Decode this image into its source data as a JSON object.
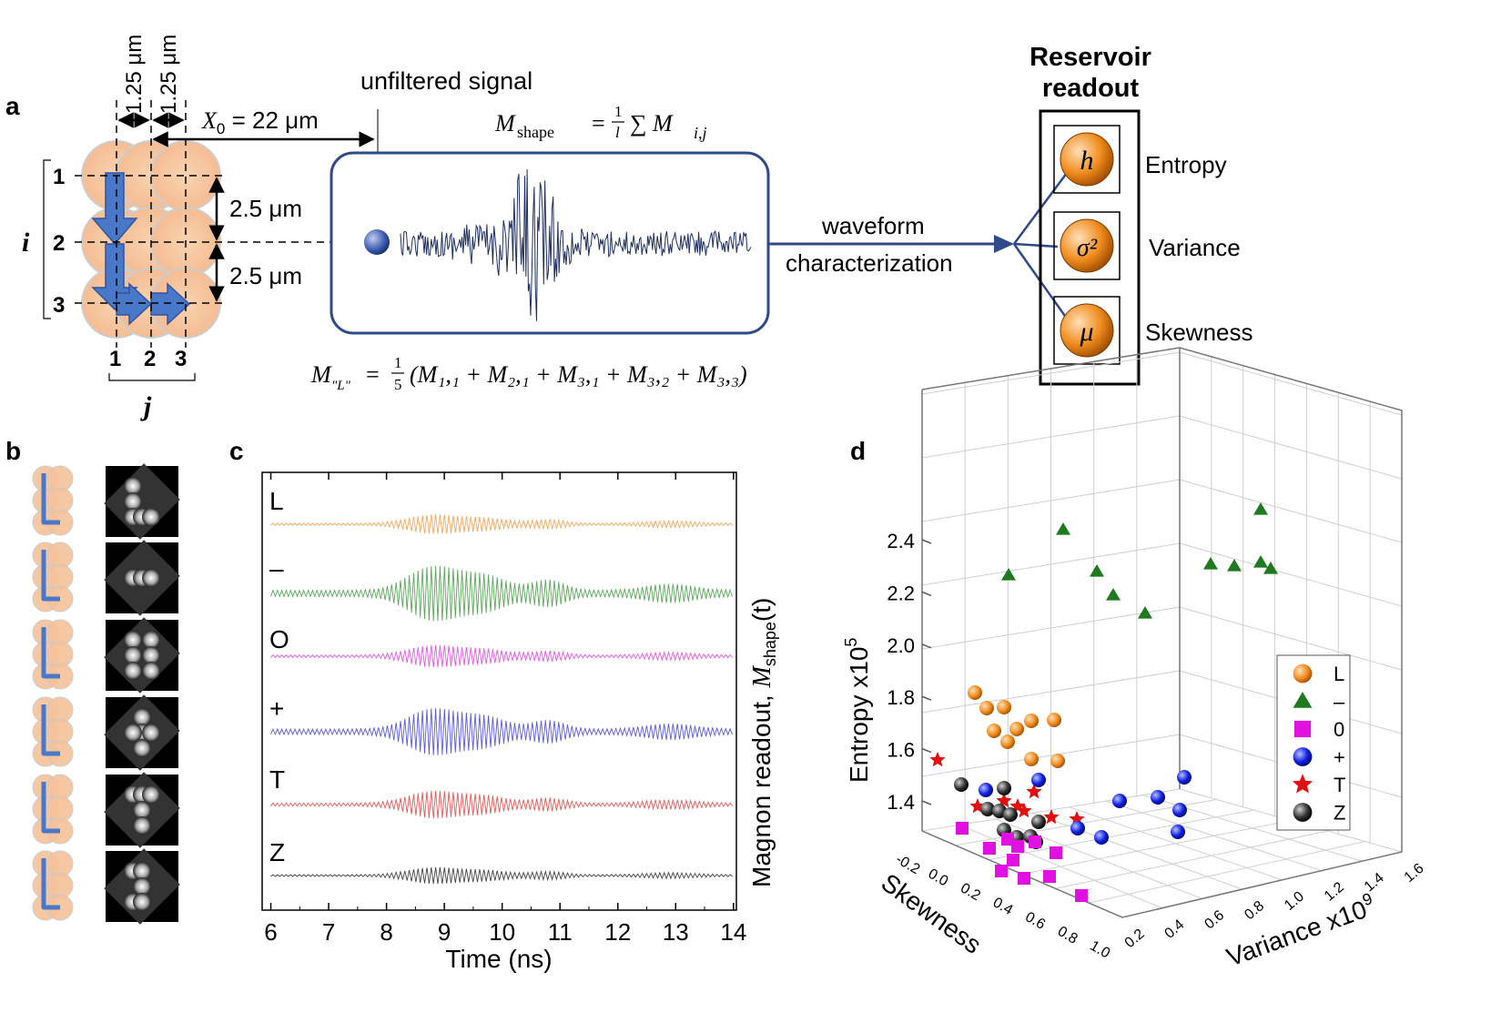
{
  "panel_labels": {
    "a": "a",
    "b": "b",
    "c": "c",
    "d": "d"
  },
  "panel_a": {
    "dim_top_1": "1.25 μm",
    "dim_top_2": "1.25 μm",
    "x0_label": "X",
    "x0_sub": "0",
    "x0_value": " =  22 μm",
    "dim_right_1": "2.5 μm",
    "dim_right_2": "2.5 μm",
    "row_labels": [
      "1",
      "2",
      "3"
    ],
    "col_labels": [
      "1",
      "2",
      "3"
    ],
    "i_label": "i",
    "j_label": "j",
    "unfiltered": "unfiltered signal",
    "m_shape_lhs": "M",
    "m_shape_sub": "shape",
    "m_shape_rhs": "= ",
    "m_shape_frac_num": "1",
    "m_shape_frac_den": "l",
    "m_shape_sum": "∑ M",
    "m_shape_sum_sub": "i,j",
    "m_l_lhs": "M",
    "m_l_sub": "\"L\"",
    "m_l_eq": "=",
    "m_l_frac_num": "1",
    "m_l_frac_den": "5",
    "m_l_rhs": "(M₁,₁ + M₂,₁ + M₃,₁ + M₃,₂ + M₃,₃)",
    "waveform_1": "waveform",
    "waveform_2": "characterization",
    "reservoir_title_1": "Reservoir",
    "reservoir_title_2": "readout",
    "readouts": [
      {
        "symbol": "h",
        "label": "Entropy"
      },
      {
        "symbol": "σ²",
        "label": "Variance"
      },
      {
        "symbol": "μ",
        "label": "Skewness"
      }
    ]
  },
  "panel_c": {
    "chart_data": {
      "type": "line",
      "title": "",
      "xlabel": "Time (ns)",
      "ylabel": "Magnon readout,  M_shape(t)",
      "ylabel_main": "Magnon readout,  ",
      "ylabel_M": "M",
      "ylabel_sub": "shape",
      "ylabel_tail": "(t)",
      "xlim": [
        5.85,
        14.05
      ],
      "x_ticks": [
        "6",
        "7",
        "8",
        "9",
        "10",
        "11",
        "12",
        "13",
        "14"
      ],
      "series": [
        {
          "name": "L",
          "color": "#f5a85a",
          "amplitude": 0.35
        },
        {
          "name": "–",
          "color": "#5aa85a",
          "amplitude": 1.0
        },
        {
          "name": "O",
          "color": "#e55ae5",
          "amplitude": 0.4
        },
        {
          "name": "+",
          "color": "#5a5ae0",
          "amplitude": 0.85
        },
        {
          "name": "T",
          "color": "#e55a5a",
          "amplitude": 0.5
        },
        {
          "name": "Z",
          "color": "#444444",
          "amplitude": 0.3
        }
      ]
    }
  },
  "panel_d": {
    "chart_data": {
      "type": "scatter",
      "z_label": "Entropy x10",
      "z_label_exp": "5",
      "x_label": "Skewness",
      "y_label": "Variance x10",
      "y_label_exp": "9",
      "z_ticks": [
        "1.4",
        "1.6",
        "1.8",
        "2.0",
        "2.2",
        "2.4"
      ],
      "skew_ticks": [
        "-0.2",
        "0.0",
        "0.2",
        "0.4",
        "0.6",
        "0.8",
        "1.0"
      ],
      "var_ticks": [
        "0.2",
        "0.4",
        "0.6",
        "0.8",
        "1.0",
        "1.2",
        "1.4",
        "1.6"
      ],
      "legend": [
        {
          "label": "L",
          "marker": "sphere",
          "color": "#f08c1e"
        },
        {
          "label": "–",
          "marker": "triangle",
          "color": "#1f7a1f"
        },
        {
          "label": "0",
          "marker": "square",
          "color": "#e010e0"
        },
        {
          "label": "+",
          "marker": "sphere",
          "color": "#1020e0"
        },
        {
          "label": "T",
          "marker": "star",
          "color": "#e01010"
        },
        {
          "label": "Z",
          "marker": "sphere",
          "color": "#333333"
        }
      ],
      "series": [
        {
          "name": "–",
          "color": "#1f7a1f",
          "marker": "triangle",
          "points": [
            [
              1108,
              632
            ],
            [
              1168,
              582
            ],
            [
              1205,
              628
            ],
            [
              1223,
              654
            ],
            [
              1258,
              674
            ],
            [
              1330,
              620
            ],
            [
              1356,
              622
            ],
            [
              1385,
              560
            ],
            [
              1385,
              618
            ],
            [
              1396,
              625
            ]
          ]
        },
        {
          "name": "L",
          "color": "#f08c1e",
          "marker": "sphere",
          "points": [
            [
              1071,
              761
            ],
            [
              1084,
              778
            ],
            [
              1103,
              777
            ],
            [
              1092,
              803
            ],
            [
              1117,
              801
            ],
            [
              1133,
              792
            ],
            [
              1158,
              791
            ],
            [
              1107,
              815
            ],
            [
              1133,
              834
            ],
            [
              1162,
              836
            ]
          ]
        },
        {
          "name": "T",
          "color": "#e01010",
          "marker": "star",
          "points": [
            [
              1030,
              835
            ],
            [
              1074,
              886
            ],
            [
              1103,
              880
            ],
            [
              1118,
              886
            ],
            [
              1125,
              891
            ],
            [
              1136,
              870
            ],
            [
              1155,
              898
            ],
            [
              1183,
              900
            ]
          ]
        },
        {
          "name": "+",
          "color": "#1020e0",
          "marker": "sphere",
          "points": [
            [
              1083,
              868
            ],
            [
              1141,
              857
            ],
            [
              1184,
              910
            ],
            [
              1210,
              920
            ],
            [
              1230,
              880
            ],
            [
              1272,
              876
            ],
            [
              1296,
              890
            ],
            [
              1301,
              854
            ],
            [
              1294,
              914
            ]
          ]
        },
        {
          "name": "Z",
          "color": "#333333",
          "marker": "sphere",
          "points": [
            [
              1056,
              862
            ],
            [
              1103,
              866
            ],
            [
              1085,
              889
            ],
            [
              1098,
              891
            ],
            [
              1110,
              895
            ],
            [
              1141,
              903
            ],
            [
              1103,
              912
            ],
            [
              1117,
              920
            ],
            [
              1138,
              925
            ],
            [
              1132,
              919
            ]
          ]
        },
        {
          "name": "0",
          "color": "#e010e0",
          "marker": "square",
          "points": [
            [
              1057,
              910
            ],
            [
              1087,
              932
            ],
            [
              1107,
              922
            ],
            [
              1118,
              930
            ],
            [
              1113,
              945
            ],
            [
              1137,
              925
            ],
            [
              1160,
              937
            ],
            [
              1100,
              957
            ],
            [
              1125,
              965
            ],
            [
              1153,
              963
            ],
            [
              1188,
              984
            ]
          ]
        }
      ]
    }
  }
}
